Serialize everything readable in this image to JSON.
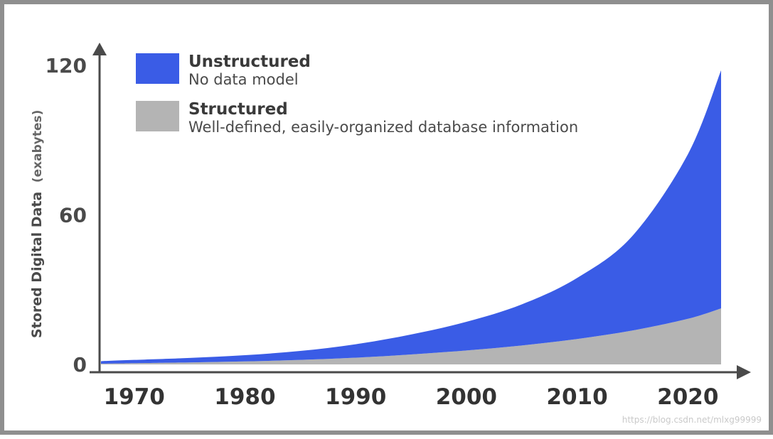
{
  "chart_data": {
    "type": "area",
    "stacked": true,
    "title": "",
    "ylabel": "Stored Digital Data",
    "ylabel_unit": "(exabytes)",
    "xlabel": "",
    "x_ticks": [
      1970,
      1980,
      1990,
      2000,
      2010,
      2020
    ],
    "y_ticks": [
      0,
      60,
      120
    ],
    "xlim": [
      1967,
      2023
    ],
    "ylim": [
      0,
      120
    ],
    "x": [
      1967,
      1970,
      1975,
      1980,
      1985,
      1990,
      1995,
      2000,
      2005,
      2010,
      2015,
      2020,
      2023
    ],
    "series": [
      {
        "name": "Structured",
        "description": "Well-defined, easily-organized database information",
        "color": "#b4b4b4",
        "values": [
          0.3,
          0.5,
          0.8,
          1.2,
          1.8,
          2.7,
          4.0,
          5.6,
          7.6,
          10.2,
          13.6,
          18.3,
          22.5
        ]
      },
      {
        "name": "Unstructured",
        "description": "No data model",
        "color": "#3a5ce6",
        "values": [
          1.0,
          1.3,
          1.8,
          2.5,
          3.6,
          5.4,
          8.0,
          11.5,
          16.5,
          24.5,
          38.0,
          66.0,
          95.5
        ]
      }
    ],
    "legend_position": "top-left",
    "grid": false
  },
  "watermark": "https://blog.csdn.net/mlxg99999"
}
